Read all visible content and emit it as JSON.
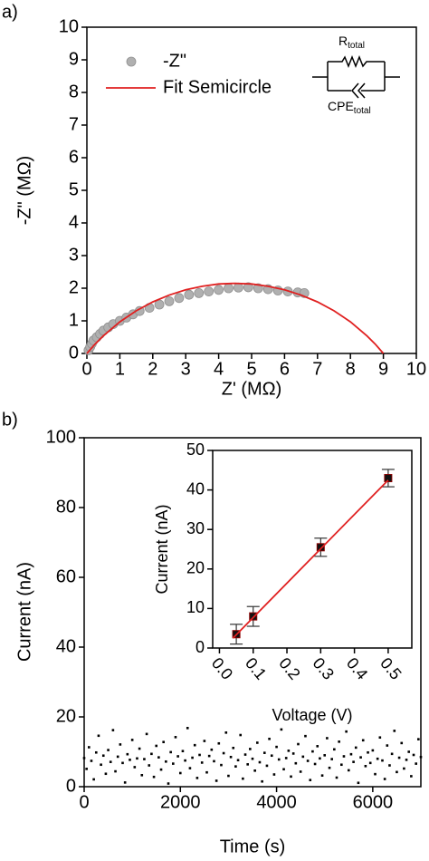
{
  "chart_data": [
    {
      "type": "scatter",
      "label": "a)",
      "xlabel": "Z' (MΩ)",
      "ylabel": "-Z\" (MΩ)",
      "xlim": [
        0,
        10
      ],
      "ylim": [
        0,
        10
      ],
      "xticks": [
        0,
        1,
        2,
        3,
        4,
        5,
        6,
        7,
        8,
        9,
        10
      ],
      "yticks": [
        0,
        1,
        2,
        3,
        4,
        5,
        6,
        7,
        8,
        9,
        10
      ],
      "legend": "upper left",
      "circuit_labels": [
        {
          "main": "R",
          "sub": "total"
        },
        {
          "main": "CPE",
          "sub": "total"
        }
      ],
      "series": [
        {
          "name": "-Z\"",
          "type": "scatter",
          "color": "#b0b0b0",
          "x": [
            0.05,
            0.1,
            0.15,
            0.2,
            0.3,
            0.4,
            0.5,
            0.65,
            0.8,
            1.0,
            1.2,
            1.4,
            1.6,
            1.9,
            2.2,
            2.5,
            2.8,
            3.1,
            3.4,
            3.7,
            4.0,
            4.3,
            4.6,
            4.9,
            5.2,
            5.5,
            5.8,
            6.1,
            6.4,
            6.6
          ],
          "values": [
            0.1,
            0.2,
            0.3,
            0.4,
            0.5,
            0.6,
            0.7,
            0.8,
            0.9,
            1.0,
            1.1,
            1.2,
            1.3,
            1.4,
            1.5,
            1.6,
            1.7,
            1.8,
            1.85,
            1.9,
            1.95,
            2.0,
            2.02,
            2.03,
            2.0,
            1.97,
            1.93,
            1.9,
            1.87,
            1.85
          ]
        },
        {
          "name": "Fit Semicircle",
          "type": "line",
          "color": "#e02020",
          "x": [
            0,
            0.25,
            0.5,
            1,
            1.5,
            2,
            2.5,
            3,
            3.5,
            4,
            4.5,
            5,
            5.5,
            6,
            6.5,
            7,
            7.5,
            8,
            8.5,
            8.75,
            9
          ],
          "values": [
            0,
            0.29,
            0.54,
            0.97,
            1.31,
            1.58,
            1.79,
            1.95,
            2.06,
            2.13,
            2.15,
            2.13,
            2.06,
            1.95,
            1.79,
            1.58,
            1.31,
            0.97,
            0.54,
            0.29,
            0
          ]
        }
      ]
    },
    {
      "type": "scatter",
      "label": "b)",
      "xlabel": "Time (s)",
      "ylabel": "Current (nA)",
      "xlim": [
        0,
        7000
      ],
      "ylim": [
        0,
        100
      ],
      "xticks": [
        0,
        2000,
        4000,
        6000
      ],
      "yticks": [
        0,
        20,
        40,
        60,
        80,
        100
      ],
      "series": [
        {
          "type": "scatter",
          "color": "#000000",
          "x": [
            0,
            50,
            100,
            150,
            200,
            250,
            300,
            350,
            400,
            450,
            500,
            550,
            600,
            650,
            700,
            750,
            800,
            850,
            900,
            950,
            1000,
            1050,
            1100,
            1150,
            1200,
            1250,
            1300,
            1350,
            1400,
            1450,
            1500,
            1550,
            1600,
            1650,
            1700,
            1750,
            1800,
            1850,
            1900,
            1950,
            2000,
            2050,
            2100,
            2150,
            2200,
            2250,
            2300,
            2350,
            2400,
            2450,
            2500,
            2550,
            2600,
            2650,
            2700,
            2750,
            2800,
            2850,
            2900,
            2950,
            3000,
            3050,
            3100,
            3150,
            3200,
            3250,
            3300,
            3350,
            3400,
            3450,
            3500,
            3550,
            3600,
            3650,
            3700,
            3750,
            3800,
            3850,
            3900,
            3950,
            4000,
            4050,
            4100,
            4150,
            4200,
            4250,
            4300,
            4350,
            4400,
            4450,
            4500,
            4550,
            4600,
            4650,
            4700,
            4750,
            4800,
            4850,
            4900,
            4950,
            5000,
            5050,
            5100,
            5150,
            5200,
            5250,
            5300,
            5350,
            5400,
            5450,
            5500,
            5550,
            5600,
            5650,
            5700,
            5750,
            5800,
            5850,
            5900,
            5950,
            6000,
            6050,
            6100,
            6150,
            6200,
            6250,
            6300,
            6350,
            6400,
            6450,
            6500,
            6550,
            6600,
            6650,
            6700,
            6750,
            6800,
            6850,
            6900,
            6950,
            7000
          ],
          "values": [
            8.2,
            5.1,
            11.3,
            7.4,
            2.1,
            9.8,
            14.6,
            6.3,
            8.9,
            3.7,
            10.5,
            7.1,
            16.2,
            4.4,
            8.6,
            12.1,
            6.8,
            1.2,
            9.3,
            7.7,
            13.4,
            5.6,
            8.1,
            10.9,
            3.3,
            7.9,
            15.1,
            6.1,
            9.4,
            2.8,
            11.7,
            8.4,
            4.9,
            12.8,
            7.2,
            0.9,
            9.9,
            6.6,
            14.2,
            8.7,
            3.9,
            10.2,
            7.5,
            16.8,
            5.3,
            8.3,
            11.9,
            2.5,
            9.1,
            6.9,
            13.1,
            4.1,
            8.8,
            10.6,
            7.3,
            1.7,
            12.4,
            6.2,
            9.6,
            15.5,
            3.1,
            8.5,
            11.1,
            5.8,
            7.6,
            14.8,
            2.3,
            9.2,
            6.4,
            10.8,
            8.0,
            4.6,
            12.6,
            7.0,
            1.5,
            9.7,
            6.0,
            13.7,
            8.9,
            3.5,
            11.4,
            7.8,
            16.4,
            5.0,
            8.2,
            10.3,
            2.9,
            9.5,
            6.7,
            12.2,
            4.3,
            8.6,
            14.5,
            7.4,
            1.9,
            10.1,
            6.5,
            11.6,
            8.1,
            3.2,
            9.0,
            13.9,
            5.4,
            7.9,
            10.7,
            2.6,
            12.9,
            6.3,
            8.7,
            15.8,
            4.7,
            9.3,
            7.1,
            11.2,
            1.1,
            8.4,
            13.3,
            5.9,
            9.8,
            6.8,
            10.4,
            3.6,
            8.0,
            14.1,
            7.5,
            2.2,
            11.8,
            6.1,
            9.4,
            16.0,
            4.2,
            8.3,
            12.5,
            5.2,
            7.7,
            10.0,
            3.0,
            9.1,
            6.6,
            13.6,
            8.5
          ]
        }
      ]
    },
    {
      "type": "scatter",
      "xlabel": "Voltage (V)",
      "ylabel": "Current (nA)",
      "xlim": [
        -0.02,
        0.57
      ],
      "ylim": [
        0,
        50
      ],
      "xticks": [
        {
          "value": 0,
          "label": "0.0"
        },
        0.1,
        0.2,
        0.3,
        0.4,
        0.5
      ],
      "yticks": [
        0,
        10,
        20,
        30,
        40,
        50
      ],
      "series": [
        {
          "type": "scatter",
          "color": "#111111",
          "x": [
            0.05,
            0.1,
            0.3,
            0.5
          ],
          "values": [
            3.5,
            8,
            25.5,
            43
          ],
          "errors": [
            2.5,
            2.5,
            2.3,
            2.2
          ]
        },
        {
          "type": "line",
          "color": "#e02020",
          "x": [
            0.04,
            0.5
          ],
          "values": [
            2.5,
            42.5
          ]
        }
      ]
    }
  ]
}
